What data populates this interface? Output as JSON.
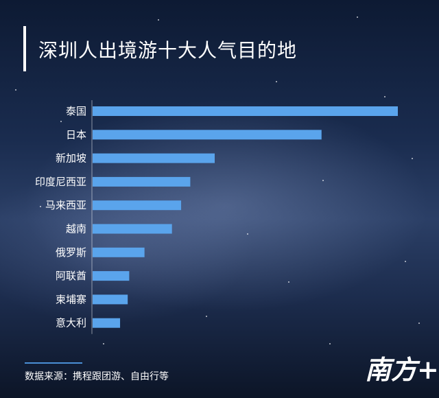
{
  "chart_data": {
    "type": "bar",
    "orientation": "horizontal",
    "title": "深圳人出境游十大人气目的地",
    "categories": [
      "泰国",
      "日本",
      "新加坡",
      "印度尼西亚",
      "马来西亚",
      "越南",
      "俄罗斯",
      "阿联酋",
      "柬埔寨",
      "意大利"
    ],
    "values": [
      100,
      75,
      40,
      32,
      29,
      26,
      17,
      12,
      11.5,
      9
    ],
    "xlim": [
      0,
      100
    ],
    "grid": false,
    "bar_color": "#5aa4ec"
  },
  "source_text": "数据来源：携程跟团游、自由行等",
  "logo_text": "南方+"
}
